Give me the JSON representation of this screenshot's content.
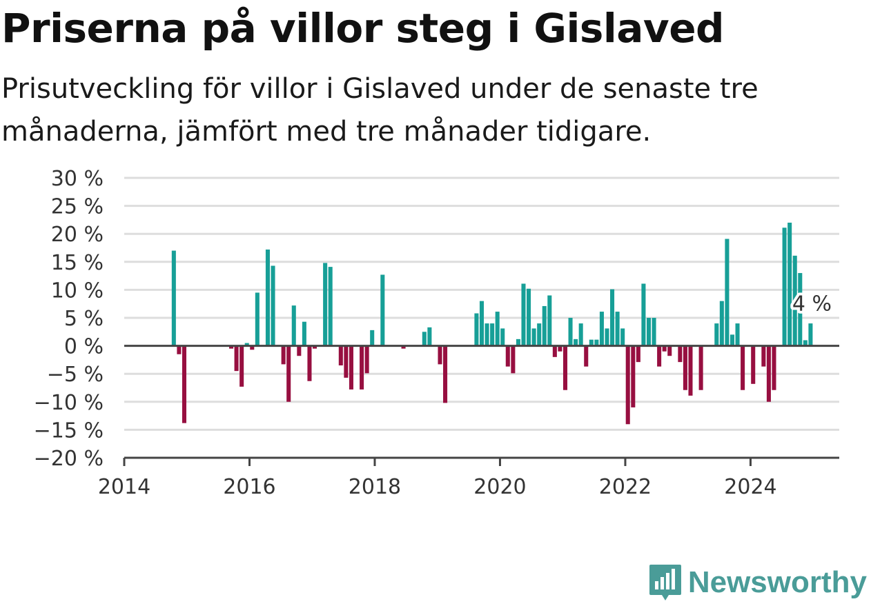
{
  "title": "Priserna på villor steg i Gislaved",
  "subtitle": "Prisutveckling för villor i Gislaved under de senaste tre månaderna, jämfört med tre månader tidigare.",
  "brand": "Newsworthy",
  "colors": {
    "positive": "#179f97",
    "negative": "#970f40",
    "grid": "#dddddd",
    "axis": "#444444"
  },
  "chart_data": {
    "type": "bar",
    "title": "Priserna på villor steg i Gislaved",
    "ylim": [
      -20,
      30
    ],
    "yticks": [
      30,
      25,
      20,
      15,
      10,
      5,
      0,
      -5,
      -10,
      -15,
      -20
    ],
    "ytick_labels": [
      "30 %",
      "25 %",
      "20 %",
      "15 %",
      "10 %",
      "5 %",
      "0 %",
      "−5 %",
      "−10 %",
      "−15 %",
      "−20 %"
    ],
    "xlim": [
      "2014-01",
      "2025-06"
    ],
    "xticks": [
      "2014",
      "2016",
      "2018",
      "2020",
      "2022",
      "2024"
    ],
    "grid": true,
    "annotation": {
      "date": "2024-12",
      "label": "4 %"
    },
    "series": [
      {
        "values": [
          [
            "2014-10",
            17
          ],
          [
            "2014-11",
            -1.5
          ],
          [
            "2014-12",
            -13.8
          ],
          [
            "2015-09",
            -0.5
          ],
          [
            "2015-10",
            -4.5
          ],
          [
            "2015-11",
            -7.3
          ],
          [
            "2015-12",
            0.5
          ],
          [
            "2016-01",
            -0.7
          ],
          [
            "2016-02",
            9.5
          ],
          [
            "2016-04",
            17.2
          ],
          [
            "2016-05",
            14.3
          ],
          [
            "2016-07",
            -3.3
          ],
          [
            "2016-08",
            -10
          ],
          [
            "2016-09",
            7.2
          ],
          [
            "2016-10",
            -1.8
          ],
          [
            "2016-11",
            4.3
          ],
          [
            "2016-12",
            -6.3
          ],
          [
            "2017-01",
            -0.5
          ],
          [
            "2017-03",
            14.8
          ],
          [
            "2017-04",
            14.1
          ],
          [
            "2017-06",
            -3.5
          ],
          [
            "2017-07",
            -5.7
          ],
          [
            "2017-08",
            -7.8
          ],
          [
            "2017-10",
            -7.8
          ],
          [
            "2017-11",
            -4.9
          ],
          [
            "2017-12",
            2.8
          ],
          [
            "2018-02",
            12.7
          ],
          [
            "2018-06",
            -0.5
          ],
          [
            "2018-10",
            2.5
          ],
          [
            "2018-11",
            3.3
          ],
          [
            "2019-01",
            -3.3
          ],
          [
            "2019-02",
            -10.2
          ],
          [
            "2019-08",
            5.8
          ],
          [
            "2019-09",
            8
          ],
          [
            "2019-10",
            4
          ],
          [
            "2019-11",
            4
          ],
          [
            "2019-12",
            6.1
          ],
          [
            "2020-01",
            3.1
          ],
          [
            "2020-02",
            -3.7
          ],
          [
            "2020-03",
            -4.9
          ],
          [
            "2020-04",
            1.2
          ],
          [
            "2020-05",
            11.1
          ],
          [
            "2020-06",
            10.2
          ],
          [
            "2020-07",
            3.1
          ],
          [
            "2020-08",
            4
          ],
          [
            "2020-09",
            7.1
          ],
          [
            "2020-10",
            9
          ],
          [
            "2020-11",
            -2
          ],
          [
            "2020-12",
            -1
          ],
          [
            "2021-01",
            -7.9
          ],
          [
            "2021-02",
            5
          ],
          [
            "2021-03",
            1.2
          ],
          [
            "2021-04",
            4
          ],
          [
            "2021-05",
            -3.7
          ],
          [
            "2021-06",
            1.1
          ],
          [
            "2021-07",
            1.1
          ],
          [
            "2021-08",
            6.1
          ],
          [
            "2021-09",
            3.1
          ],
          [
            "2021-10",
            10.1
          ],
          [
            "2021-11",
            6.1
          ],
          [
            "2021-12",
            3.1
          ],
          [
            "2022-01",
            -14
          ],
          [
            "2022-02",
            -11
          ],
          [
            "2022-03",
            -2.9
          ],
          [
            "2022-04",
            11.1
          ],
          [
            "2022-05",
            5
          ],
          [
            "2022-06",
            5
          ],
          [
            "2022-07",
            -3.7
          ],
          [
            "2022-08",
            -1
          ],
          [
            "2022-09",
            -1.8
          ],
          [
            "2022-11",
            -2.9
          ],
          [
            "2022-12",
            -7.9
          ],
          [
            "2023-01",
            -8.9
          ],
          [
            "2023-03",
            -7.9
          ],
          [
            "2023-06",
            4
          ],
          [
            "2023-07",
            8
          ],
          [
            "2023-08",
            19.1
          ],
          [
            "2023-09",
            2
          ],
          [
            "2023-10",
            4
          ],
          [
            "2023-11",
            -7.9
          ],
          [
            "2024-01",
            -6.8
          ],
          [
            "2024-03",
            -3.7
          ],
          [
            "2024-04",
            -10
          ],
          [
            "2024-05",
            -7.9
          ],
          [
            "2024-07",
            21.1
          ],
          [
            "2024-08",
            22
          ],
          [
            "2024-09",
            16.1
          ],
          [
            "2024-10",
            13
          ],
          [
            "2024-11",
            1
          ],
          [
            "2024-12",
            4
          ]
        ]
      }
    ]
  }
}
